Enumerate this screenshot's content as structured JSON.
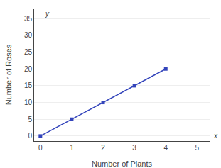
{
  "chart_data": {
    "type": "line",
    "x_label": "Number of Plants",
    "y_label": "Number of Roses",
    "x": [
      0,
      1,
      2,
      3,
      4
    ],
    "series": [
      {
        "values": [
          0,
          5,
          10,
          15,
          20
        ],
        "color": "#3344bb",
        "marker": "square"
      }
    ],
    "xlim": [
      -0.2,
      5.4
    ],
    "ylim": [
      -1.5,
      38
    ],
    "xticks": [
      0,
      1,
      2,
      3,
      4,
      5
    ],
    "yticks": [
      0,
      5,
      10,
      15,
      20,
      25,
      30,
      35
    ],
    "annotations": [
      "x",
      "y"
    ],
    "grid": "y"
  }
}
